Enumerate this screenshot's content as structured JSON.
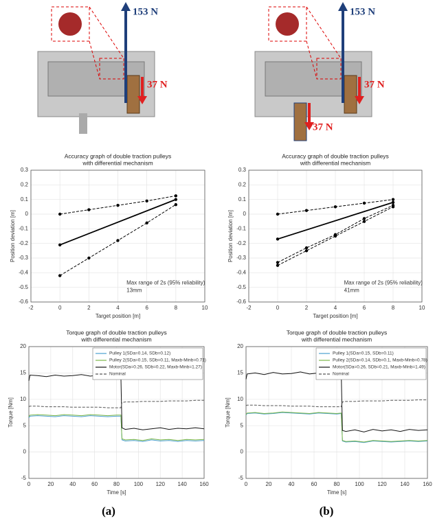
{
  "chart_data": [
    {
      "type": "line",
      "title": [
        "Accuracy graph of double traction pulleys",
        "with differential mechanism"
      ],
      "xlabel": "Target position [m]",
      "ylabel": "Position deviation [m]",
      "xlim": [
        -2,
        10
      ],
      "xticks": [
        -2,
        0,
        2,
        4,
        6,
        8,
        10
      ],
      "ylim": [
        -0.6,
        0.3
      ],
      "yticks": [
        0.3,
        0.2,
        0.1,
        0,
        -0.1,
        -0.2,
        -0.3,
        -0.4,
        -0.5,
        -0.6
      ],
      "grid": true,
      "annotation": [
        "Max range of 2s (95% reliability)",
        "13mm"
      ],
      "series": [
        {
          "color": "#000000",
          "dash": true,
          "x": [
            0,
            2,
            4,
            6,
            8
          ],
          "values": [
            0,
            0.03,
            0.06,
            0.09,
            0.125
          ]
        },
        {
          "color": "#000000",
          "dash": false,
          "x": [
            0,
            8
          ],
          "values": [
            -0.21,
            0.1
          ]
        },
        {
          "color": "#000000",
          "dash": true,
          "x": [
            0,
            2,
            4,
            6,
            8
          ],
          "values": [
            -0.42,
            -0.3,
            -0.18,
            -0.06,
            0.065
          ]
        }
      ]
    },
    {
      "type": "line",
      "title": [
        "Accuracy graph of double traction pulleys",
        "with differential mechanism"
      ],
      "xlabel": "Target position [m]",
      "ylabel": "Position deviation [m]",
      "xlim": [
        -2,
        10
      ],
      "xticks": [
        -2,
        0,
        2,
        4,
        6,
        8,
        10
      ],
      "ylim": [
        -0.6,
        0.3
      ],
      "yticks": [
        0.3,
        0.2,
        0.1,
        0,
        -0.1,
        -0.2,
        -0.3,
        -0.4,
        -0.5,
        -0.6
      ],
      "grid": true,
      "annotation": [
        "Max range of 2s (95% reliability)",
        "41mm"
      ],
      "series": [
        {
          "color": "#000000",
          "dash": true,
          "x": [
            0,
            2,
            4,
            6,
            8
          ],
          "values": [
            0,
            0.025,
            0.05,
            0.075,
            0.1
          ]
        },
        {
          "color": "#000000",
          "dash": false,
          "x": [
            0,
            8
          ],
          "values": [
            -0.17,
            0.08
          ]
        },
        {
          "color": "#000000",
          "dash": true,
          "x": [
            0,
            2,
            4,
            6,
            8
          ],
          "values": [
            -0.33,
            -0.23,
            -0.14,
            -0.03,
            0.06
          ]
        },
        {
          "color": "#000000",
          "dash": true,
          "x": [
            0,
            2,
            4,
            6,
            8
          ],
          "values": [
            -0.35,
            -0.25,
            -0.15,
            -0.05,
            0.05
          ]
        }
      ]
    },
    {
      "type": "line",
      "title": [
        "Torque graph of double traction pulleys",
        "with differential mechanism"
      ],
      "xlabel": "Time [s]",
      "ylabel": "Torque [Nm]",
      "xlim": [
        0,
        160
      ],
      "xticks": [
        0,
        20,
        40,
        60,
        80,
        100,
        120,
        140,
        160
      ],
      "ylim": [
        -5,
        20
      ],
      "yticks": [
        20,
        15,
        10,
        5,
        0,
        -5
      ],
      "grid": true,
      "legend": "upper right",
      "x": [
        0,
        1,
        8,
        16,
        24,
        32,
        40,
        48,
        56,
        64,
        72,
        80,
        84,
        85,
        88,
        96,
        104,
        112,
        120,
        128,
        136,
        144,
        152,
        160
      ],
      "series": [
        {
          "name": "Pulley 1(SDa=0.14, SDb=0.12)",
          "color": "#4a9fd0",
          "dash": false,
          "values": [
            6.5,
            6.8,
            6.9,
            6.8,
            6.7,
            6.9,
            6.8,
            6.7,
            6.9,
            6.8,
            6.7,
            6.8,
            6.8,
            2.3,
            2.1,
            2.2,
            2.0,
            2.3,
            2.1,
            2.2,
            2.0,
            2.2,
            2.1,
            2.2
          ]
        },
        {
          "name": "Pulley 2(SDa=0.15, SDb=0.11, Maxb-Minb=0.71)",
          "color": "#7ab648",
          "dash": false,
          "values": [
            6.7,
            7.0,
            7.1,
            7.0,
            6.9,
            7.1,
            7.0,
            6.9,
            7.1,
            7.0,
            6.9,
            7.0,
            7.0,
            2.5,
            2.3,
            2.4,
            2.2,
            2.5,
            2.3,
            2.4,
            2.2,
            2.4,
            2.3,
            2.4
          ]
        },
        {
          "name": "Motor(SDa=0.26, SDb=0.22, Maxb-Minb=1.27)",
          "color": "#111111",
          "dash": false,
          "values": [
            13.5,
            14.6,
            14.5,
            14.3,
            14.6,
            14.4,
            14.5,
            14.7,
            14.4,
            14.6,
            14.5,
            14.4,
            14.5,
            4.6,
            4.3,
            4.5,
            4.2,
            4.4,
            4.6,
            4.3,
            4.5,
            4.4,
            4.6,
            4.4
          ]
        },
        {
          "name": "Nominal",
          "color": "#555555",
          "dash": true,
          "values": [
            8.6,
            8.7,
            8.7,
            8.6,
            8.6,
            8.6,
            8.5,
            8.5,
            8.5,
            8.5,
            8.4,
            8.4,
            8.4,
            9.4,
            9.5,
            9.5,
            9.6,
            9.6,
            9.6,
            9.7,
            9.7,
            9.7,
            9.8,
            9.8
          ]
        }
      ]
    },
    {
      "type": "line",
      "title": [
        "Torque graph of double traction pulleys",
        "with differential mechanism"
      ],
      "xlabel": "Time [s]",
      "ylabel": "Torque [Nm]",
      "xlim": [
        0,
        160
      ],
      "xticks": [
        0,
        20,
        40,
        60,
        80,
        100,
        120,
        140,
        160
      ],
      "ylim": [
        -5,
        20
      ],
      "yticks": [
        20,
        15,
        10,
        5,
        0,
        -5
      ],
      "grid": true,
      "legend": "upper right",
      "x": [
        0,
        1,
        8,
        16,
        24,
        32,
        40,
        48,
        56,
        64,
        72,
        80,
        84,
        85,
        88,
        96,
        104,
        112,
        120,
        128,
        136,
        144,
        152,
        160
      ],
      "series": [
        {
          "name": "Pulley 1(SDa=0.15, SDb=0.11)",
          "color": "#4a9fd0",
          "dash": false,
          "values": [
            7.0,
            7.3,
            7.4,
            7.2,
            7.3,
            7.5,
            7.4,
            7.3,
            7.2,
            7.4,
            7.3,
            7.2,
            7.3,
            2.1,
            1.9,
            2.0,
            1.8,
            2.1,
            2.0,
            1.9,
            2.0,
            2.1,
            2.0,
            2.1
          ]
        },
        {
          "name": "Pulley 2(SDa=0.14, SDb=0.1, Maxb-Minb=0.78)",
          "color": "#7ab648",
          "dash": false,
          "values": [
            7.1,
            7.4,
            7.5,
            7.3,
            7.4,
            7.6,
            7.5,
            7.4,
            7.3,
            7.5,
            7.4,
            7.3,
            7.4,
            2.2,
            2.0,
            2.1,
            1.9,
            2.2,
            2.1,
            2.0,
            2.1,
            2.2,
            2.1,
            2.2
          ]
        },
        {
          "name": "Motor(SDa=0.26, SDb=0.21, Maxb-Minb=1.49)",
          "color": "#111111",
          "dash": false,
          "values": [
            13.8,
            14.8,
            15.0,
            14.7,
            15.1,
            14.8,
            14.9,
            15.2,
            14.8,
            15.0,
            14.7,
            14.9,
            14.9,
            4.1,
            3.9,
            4.2,
            3.8,
            4.3,
            4.0,
            4.2,
            3.9,
            4.3,
            4.1,
            4.2
          ]
        },
        {
          "name": "Nominal",
          "color": "#555555",
          "dash": true,
          "values": [
            8.8,
            8.9,
            8.9,
            8.8,
            8.8,
            8.8,
            8.7,
            8.7,
            8.7,
            8.6,
            8.6,
            8.6,
            8.6,
            9.5,
            9.6,
            9.6,
            9.7,
            9.7,
            9.7,
            9.8,
            9.8,
            9.8,
            9.9,
            9.9
          ]
        }
      ]
    }
  ],
  "figure": {
    "panels": [
      {
        "label": "(a)",
        "forces": [
          "153 N",
          "37 N"
        ]
      },
      {
        "label": "(b)",
        "forces": [
          "153 N",
          "37 N",
          "37 N"
        ]
      }
    ]
  }
}
